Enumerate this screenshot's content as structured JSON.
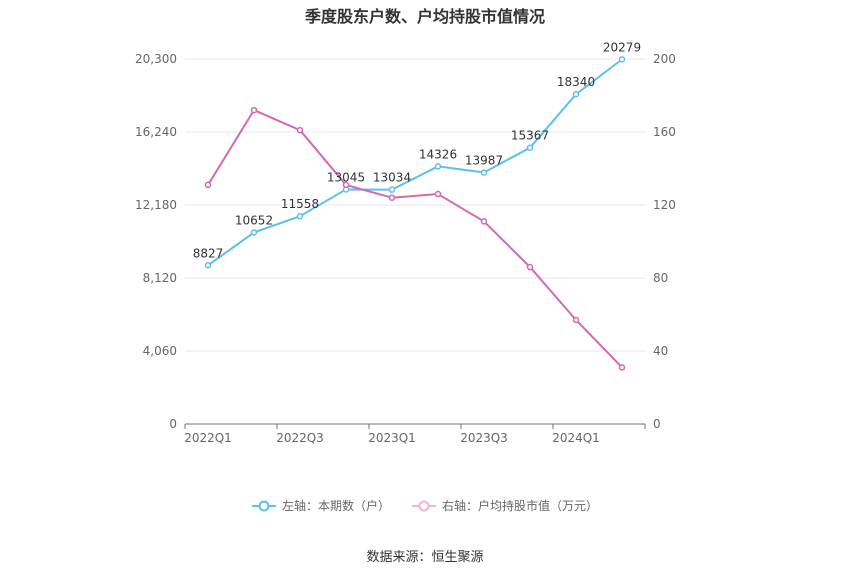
{
  "chart_data": {
    "type": "line",
    "title": "季度股东户数、户均持股市值情况",
    "categories": [
      "2022Q1",
      "2022Q2",
      "2022Q3",
      "2022Q4",
      "2023Q1",
      "2023Q2",
      "2023Q3",
      "2023Q4",
      "2024Q1",
      "2024Q2"
    ],
    "x_tick_labels": [
      "2022Q1",
      "2022Q3",
      "2023Q1",
      "2023Q3",
      "2024Q1"
    ],
    "left_axis": {
      "ylim": [
        0,
        20300
      ],
      "ticks": [
        "0",
        "4,060",
        "8,120",
        "12,180",
        "16,240",
        "20,300"
      ]
    },
    "right_axis": {
      "ylim": [
        0,
        200
      ],
      "ticks": [
        "0",
        "40",
        "80",
        "120",
        "160",
        "200"
      ]
    },
    "grid": true,
    "legend_position": "bottom",
    "series": [
      {
        "name": "左轴：本期数（户）",
        "axis": "left",
        "color": "#5bc0eb",
        "values": [
          8827,
          10652,
          11558,
          13045,
          13034,
          14326,
          13987,
          15367,
          18340,
          20279
        ],
        "labels": [
          "8827",
          "10652",
          "11558",
          "13045",
          "13034",
          "14326",
          "13987",
          "15367",
          "18340",
          "20279"
        ]
      },
      {
        "name": "右轴：户均持股市值（万元）",
        "axis": "right",
        "color": "#d46aae",
        "values": [
          131,
          172,
          161,
          131,
          124,
          126,
          111,
          86,
          57,
          31
        ]
      }
    ]
  },
  "source": "数据来源：恒生聚源"
}
